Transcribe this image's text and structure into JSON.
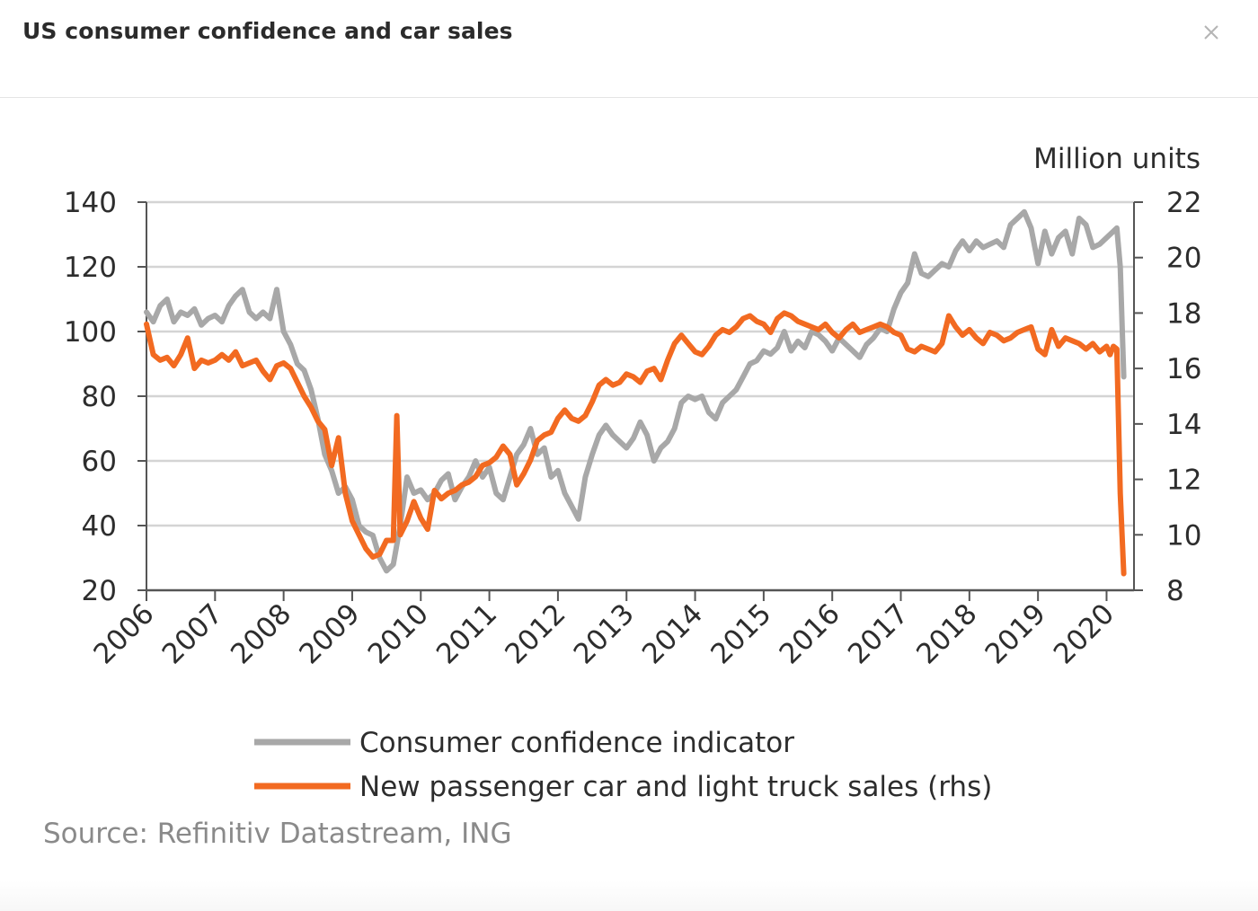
{
  "modal": {
    "title": "US consumer confidence and car sales",
    "close_icon": "close-icon"
  },
  "source": "Source: Refinitiv Datastream, ING",
  "colors": {
    "confidence": "#a8a8a8",
    "sales": "#f26a21",
    "grid": "#d4d4d4",
    "axis": "#555555"
  },
  "chart_data": {
    "type": "line",
    "title": "US consumer confidence and car sales",
    "y_right_unit": "Million units",
    "y_left": {
      "min": 20,
      "max": 140,
      "ticks": [
        "140",
        "120",
        "100",
        "80",
        "60",
        "40",
        "20"
      ]
    },
    "y_right": {
      "min": 8,
      "max": 22,
      "ticks": [
        "22",
        "20",
        "18",
        "16",
        "14",
        "12",
        "10",
        "8"
      ]
    },
    "x": {
      "min": 2006,
      "max": 2020.3,
      "ticks": [
        "2006",
        "2007",
        "2008",
        "2009",
        "2010",
        "2011",
        "2012",
        "2013",
        "2014",
        "2015",
        "2016",
        "2017",
        "2018",
        "2019",
        "2020"
      ]
    },
    "grid": true,
    "legend_position": "bottom",
    "series": [
      {
        "name": "Consumer confidence indicator",
        "axis": "left",
        "points": [
          [
            2006.0,
            106
          ],
          [
            2006.1,
            103
          ],
          [
            2006.2,
            108
          ],
          [
            2006.3,
            110
          ],
          [
            2006.4,
            103
          ],
          [
            2006.5,
            106
          ],
          [
            2006.6,
            105
          ],
          [
            2006.7,
            107
          ],
          [
            2006.8,
            102
          ],
          [
            2006.9,
            104
          ],
          [
            2007.0,
            105
          ],
          [
            2007.1,
            103
          ],
          [
            2007.2,
            108
          ],
          [
            2007.3,
            111
          ],
          [
            2007.4,
            113
          ],
          [
            2007.5,
            106
          ],
          [
            2007.6,
            104
          ],
          [
            2007.7,
            106
          ],
          [
            2007.8,
            104
          ],
          [
            2007.9,
            113
          ],
          [
            2008.0,
            100
          ],
          [
            2008.1,
            96
          ],
          [
            2008.2,
            90
          ],
          [
            2008.3,
            88
          ],
          [
            2008.4,
            82
          ],
          [
            2008.5,
            73
          ],
          [
            2008.6,
            62
          ],
          [
            2008.7,
            57
          ],
          [
            2008.8,
            50
          ],
          [
            2008.9,
            52
          ],
          [
            2009.0,
            48
          ],
          [
            2009.1,
            40
          ],
          [
            2009.2,
            38
          ],
          [
            2009.3,
            37
          ],
          [
            2009.4,
            30
          ],
          [
            2009.5,
            26
          ],
          [
            2009.6,
            28
          ],
          [
            2009.7,
            40
          ],
          [
            2009.8,
            55
          ],
          [
            2009.9,
            50
          ],
          [
            2010.0,
            51
          ],
          [
            2010.1,
            48
          ],
          [
            2010.2,
            50
          ],
          [
            2010.3,
            54
          ],
          [
            2010.4,
            56
          ],
          [
            2010.5,
            48
          ],
          [
            2010.6,
            52
          ],
          [
            2010.7,
            55
          ],
          [
            2010.8,
            60
          ],
          [
            2010.9,
            55
          ],
          [
            2011.0,
            58
          ],
          [
            2011.1,
            50
          ],
          [
            2011.2,
            48
          ],
          [
            2011.3,
            55
          ],
          [
            2011.4,
            62
          ],
          [
            2011.5,
            65
          ],
          [
            2011.6,
            70
          ],
          [
            2011.7,
            62
          ],
          [
            2011.8,
            64
          ],
          [
            2011.9,
            55
          ],
          [
            2012.0,
            57
          ],
          [
            2012.1,
            50
          ],
          [
            2012.2,
            46
          ],
          [
            2012.3,
            42
          ],
          [
            2012.4,
            55
          ],
          [
            2012.5,
            62
          ],
          [
            2012.6,
            68
          ],
          [
            2012.7,
            71
          ],
          [
            2012.8,
            68
          ],
          [
            2012.9,
            66
          ],
          [
            2013.0,
            64
          ],
          [
            2013.1,
            67
          ],
          [
            2013.2,
            72
          ],
          [
            2013.3,
            68
          ],
          [
            2013.4,
            60
          ],
          [
            2013.5,
            64
          ],
          [
            2013.6,
            66
          ],
          [
            2013.7,
            70
          ],
          [
            2013.8,
            78
          ],
          [
            2013.9,
            80
          ],
          [
            2014.0,
            79
          ],
          [
            2014.1,
            80
          ],
          [
            2014.2,
            75
          ],
          [
            2014.3,
            73
          ],
          [
            2014.4,
            78
          ],
          [
            2014.5,
            80
          ],
          [
            2014.6,
            82
          ],
          [
            2014.7,
            86
          ],
          [
            2014.8,
            90
          ],
          [
            2014.9,
            91
          ],
          [
            2015.0,
            94
          ],
          [
            2015.1,
            93
          ],
          [
            2015.2,
            95
          ],
          [
            2015.3,
            100
          ],
          [
            2015.4,
            94
          ],
          [
            2015.5,
            97
          ],
          [
            2015.6,
            95
          ],
          [
            2015.7,
            100
          ],
          [
            2015.8,
            99
          ],
          [
            2015.9,
            97
          ],
          [
            2016.0,
            94
          ],
          [
            2016.1,
            98
          ],
          [
            2016.2,
            96
          ],
          [
            2016.3,
            94
          ],
          [
            2016.4,
            92
          ],
          [
            2016.5,
            96
          ],
          [
            2016.6,
            98
          ],
          [
            2016.7,
            101
          ],
          [
            2016.8,
            100
          ],
          [
            2016.9,
            107
          ],
          [
            2017.0,
            112
          ],
          [
            2017.1,
            115
          ],
          [
            2017.2,
            124
          ],
          [
            2017.3,
            118
          ],
          [
            2017.4,
            117
          ],
          [
            2017.5,
            119
          ],
          [
            2017.6,
            121
          ],
          [
            2017.7,
            120
          ],
          [
            2017.8,
            125
          ],
          [
            2017.9,
            128
          ],
          [
            2018.0,
            125
          ],
          [
            2018.1,
            128
          ],
          [
            2018.2,
            126
          ],
          [
            2018.3,
            127
          ],
          [
            2018.4,
            128
          ],
          [
            2018.5,
            126
          ],
          [
            2018.6,
            133
          ],
          [
            2018.7,
            135
          ],
          [
            2018.8,
            137
          ],
          [
            2018.9,
            132
          ],
          [
            2019.0,
            121
          ],
          [
            2019.1,
            131
          ],
          [
            2019.2,
            124
          ],
          [
            2019.3,
            129
          ],
          [
            2019.4,
            131
          ],
          [
            2019.5,
            124
          ],
          [
            2019.6,
            135
          ],
          [
            2019.7,
            133
          ],
          [
            2019.8,
            126
          ],
          [
            2019.9,
            127
          ],
          [
            2020.0,
            129
          ],
          [
            2020.1,
            131
          ],
          [
            2020.15,
            132
          ],
          [
            2020.2,
            120
          ],
          [
            2020.25,
            86
          ]
        ]
      },
      {
        "name": "New passenger car and light truck sales (rhs)",
        "axis": "right",
        "points": [
          [
            2006.0,
            17.6
          ],
          [
            2006.1,
            16.5
          ],
          [
            2006.2,
            16.3
          ],
          [
            2006.3,
            16.4
          ],
          [
            2006.4,
            16.1
          ],
          [
            2006.5,
            16.5
          ],
          [
            2006.6,
            17.1
          ],
          [
            2006.7,
            16.0
          ],
          [
            2006.8,
            16.3
          ],
          [
            2006.9,
            16.2
          ],
          [
            2007.0,
            16.3
          ],
          [
            2007.1,
            16.5
          ],
          [
            2007.2,
            16.3
          ],
          [
            2007.3,
            16.6
          ],
          [
            2007.4,
            16.1
          ],
          [
            2007.5,
            16.2
          ],
          [
            2007.6,
            16.3
          ],
          [
            2007.7,
            15.9
          ],
          [
            2007.8,
            15.6
          ],
          [
            2007.9,
            16.1
          ],
          [
            2008.0,
            16.2
          ],
          [
            2008.1,
            16.0
          ],
          [
            2008.2,
            15.5
          ],
          [
            2008.3,
            15.0
          ],
          [
            2008.4,
            14.6
          ],
          [
            2008.5,
            14.1
          ],
          [
            2008.6,
            13.8
          ],
          [
            2008.7,
            12.5
          ],
          [
            2008.8,
            13.5
          ],
          [
            2008.9,
            11.5
          ],
          [
            2009.0,
            10.5
          ],
          [
            2009.1,
            10.0
          ],
          [
            2009.2,
            9.5
          ],
          [
            2009.3,
            9.2
          ],
          [
            2009.4,
            9.3
          ],
          [
            2009.5,
            9.8
          ],
          [
            2009.6,
            9.8
          ],
          [
            2009.65,
            14.3
          ],
          [
            2009.7,
            10.0
          ],
          [
            2009.8,
            10.5
          ],
          [
            2009.9,
            11.2
          ],
          [
            2010.0,
            10.6
          ],
          [
            2010.1,
            10.2
          ],
          [
            2010.2,
            11.6
          ],
          [
            2010.3,
            11.3
          ],
          [
            2010.4,
            11.5
          ],
          [
            2010.5,
            11.6
          ],
          [
            2010.6,
            11.8
          ],
          [
            2010.7,
            11.9
          ],
          [
            2010.8,
            12.1
          ],
          [
            2010.9,
            12.5
          ],
          [
            2011.0,
            12.6
          ],
          [
            2011.1,
            12.8
          ],
          [
            2011.2,
            13.2
          ],
          [
            2011.3,
            12.9
          ],
          [
            2011.4,
            11.8
          ],
          [
            2011.5,
            12.2
          ],
          [
            2011.6,
            12.7
          ],
          [
            2011.7,
            13.4
          ],
          [
            2011.8,
            13.6
          ],
          [
            2011.9,
            13.7
          ],
          [
            2012.0,
            14.2
          ],
          [
            2012.1,
            14.5
          ],
          [
            2012.2,
            14.2
          ],
          [
            2012.3,
            14.1
          ],
          [
            2012.4,
            14.3
          ],
          [
            2012.5,
            14.8
          ],
          [
            2012.6,
            15.4
          ],
          [
            2012.7,
            15.6
          ],
          [
            2012.8,
            15.4
          ],
          [
            2012.9,
            15.5
          ],
          [
            2013.0,
            15.8
          ],
          [
            2013.1,
            15.7
          ],
          [
            2013.2,
            15.5
          ],
          [
            2013.3,
            15.9
          ],
          [
            2013.4,
            16.0
          ],
          [
            2013.5,
            15.6
          ],
          [
            2013.6,
            16.3
          ],
          [
            2013.7,
            16.9
          ],
          [
            2013.8,
            17.2
          ],
          [
            2013.9,
            16.9
          ],
          [
            2014.0,
            16.6
          ],
          [
            2014.1,
            16.5
          ],
          [
            2014.2,
            16.8
          ],
          [
            2014.3,
            17.2
          ],
          [
            2014.4,
            17.4
          ],
          [
            2014.5,
            17.3
          ],
          [
            2014.6,
            17.5
          ],
          [
            2014.7,
            17.8
          ],
          [
            2014.8,
            17.9
          ],
          [
            2014.9,
            17.7
          ],
          [
            2015.0,
            17.6
          ],
          [
            2015.1,
            17.3
          ],
          [
            2015.2,
            17.8
          ],
          [
            2015.3,
            18.0
          ],
          [
            2015.4,
            17.9
          ],
          [
            2015.5,
            17.7
          ],
          [
            2015.6,
            17.6
          ],
          [
            2015.7,
            17.5
          ],
          [
            2015.8,
            17.4
          ],
          [
            2015.9,
            17.6
          ],
          [
            2016.0,
            17.3
          ],
          [
            2016.1,
            17.1
          ],
          [
            2016.2,
            17.4
          ],
          [
            2016.3,
            17.6
          ],
          [
            2016.4,
            17.3
          ],
          [
            2016.5,
            17.4
          ],
          [
            2016.6,
            17.5
          ],
          [
            2016.7,
            17.6
          ],
          [
            2016.8,
            17.5
          ],
          [
            2016.9,
            17.3
          ],
          [
            2017.0,
            17.2
          ],
          [
            2017.1,
            16.7
          ],
          [
            2017.2,
            16.6
          ],
          [
            2017.3,
            16.8
          ],
          [
            2017.4,
            16.7
          ],
          [
            2017.5,
            16.6
          ],
          [
            2017.6,
            16.9
          ],
          [
            2017.7,
            17.9
          ],
          [
            2017.8,
            17.5
          ],
          [
            2017.9,
            17.2
          ],
          [
            2018.0,
            17.4
          ],
          [
            2018.1,
            17.1
          ],
          [
            2018.2,
            16.9
          ],
          [
            2018.3,
            17.3
          ],
          [
            2018.4,
            17.2
          ],
          [
            2018.5,
            17.0
          ],
          [
            2018.6,
            17.1
          ],
          [
            2018.7,
            17.3
          ],
          [
            2018.8,
            17.4
          ],
          [
            2018.9,
            17.5
          ],
          [
            2019.0,
            16.7
          ],
          [
            2019.1,
            16.5
          ],
          [
            2019.2,
            17.4
          ],
          [
            2019.3,
            16.8
          ],
          [
            2019.4,
            17.1
          ],
          [
            2019.5,
            17.0
          ],
          [
            2019.6,
            16.9
          ],
          [
            2019.7,
            16.7
          ],
          [
            2019.8,
            16.9
          ],
          [
            2019.9,
            16.6
          ],
          [
            2020.0,
            16.8
          ],
          [
            2020.05,
            16.5
          ],
          [
            2020.1,
            16.8
          ],
          [
            2020.15,
            16.7
          ],
          [
            2020.2,
            11.5
          ],
          [
            2020.25,
            8.6
          ]
        ]
      }
    ]
  }
}
